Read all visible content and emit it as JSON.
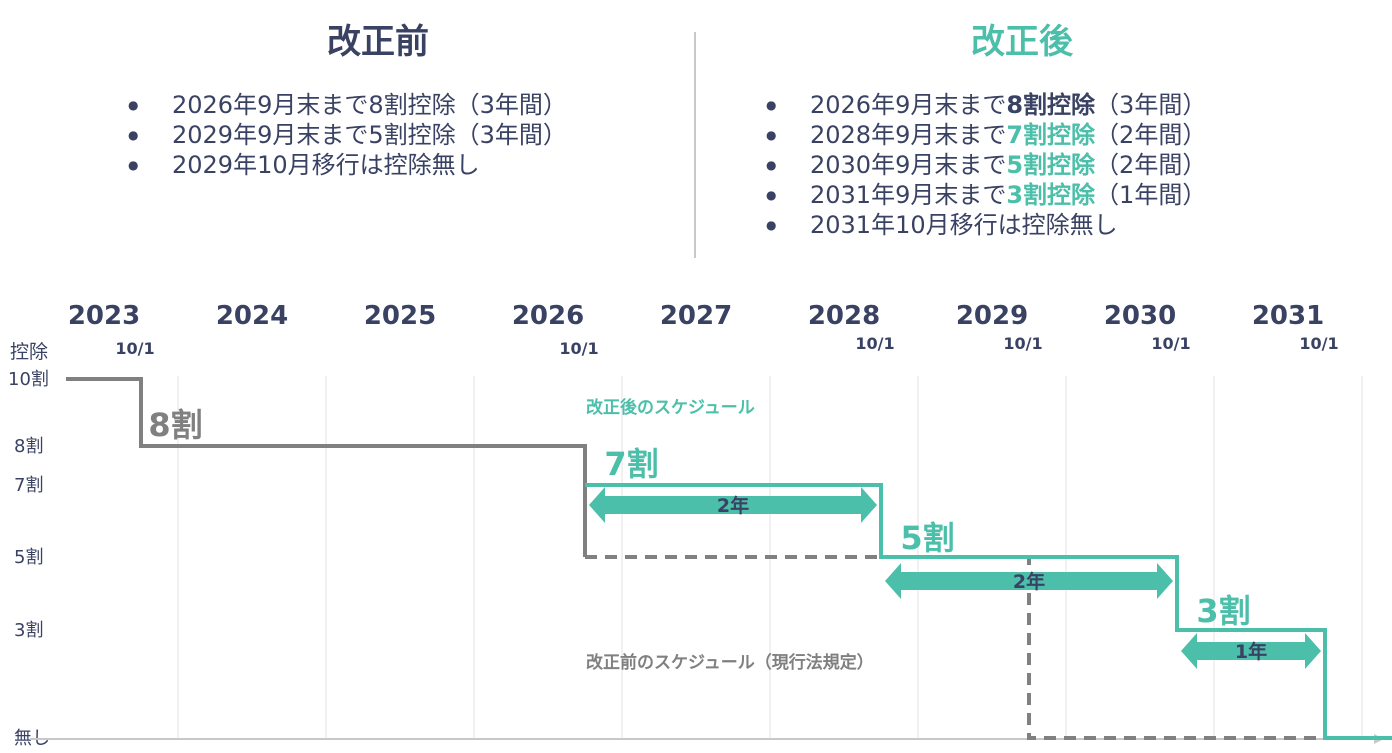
{
  "before": {
    "title": "改正前",
    "items": [
      "2026年9月末まで8割控除（3年間）",
      "2029年9月末まで5割控除（3年間）",
      "2029年10月移行は控除無し"
    ]
  },
  "after": {
    "title": "改正後",
    "items": [
      {
        "pre": "2026年9月末まで",
        "hl": "8割控除",
        "post": "（3年間）",
        "hl_color": "#3a4263"
      },
      {
        "pre": "2028年9月末まで",
        "hl": "7割控除",
        "post": "（2年間）",
        "hl_color": "#4bbfa9"
      },
      {
        "pre": "2030年9月末まで",
        "hl": "5割控除",
        "post": "（2年間）",
        "hl_color": "#4bbfa9"
      },
      {
        "pre": "2031年9月末まで",
        "hl": "3割控除",
        "post": "（1年間）",
        "hl_color": "#4bbfa9"
      },
      {
        "pre": "2031年10月移行は控除無し",
        "hl": "",
        "post": "",
        "hl_color": "#3a4263"
      }
    ]
  },
  "colors": {
    "dark": "#3a4263",
    "teal": "#4bbfa9",
    "gray": "#808080",
    "grid": "#e3e3e3"
  },
  "chart_data": {
    "type": "line",
    "years": [
      "2023",
      "2024",
      "2025",
      "2026",
      "2027",
      "2028",
      "2029",
      "2030",
      "2031"
    ],
    "y_axis_title": "控除",
    "y_ticks": [
      {
        "label": "10割",
        "value": 10
      },
      {
        "label": "8割",
        "value": 8
      },
      {
        "label": "7割",
        "value": 7
      },
      {
        "label": "5割",
        "value": 5
      },
      {
        "label": "3割",
        "value": 3
      },
      {
        "label": "無し",
        "value": 0
      }
    ],
    "date_marker_label": "10/1",
    "date_markers": [
      2023.75,
      2026.75,
      2028.75,
      2029.75,
      2030.75,
      2031.75
    ],
    "series": [
      {
        "name": "改正前のスケジュール（現行法規定）",
        "points": [
          [
            2023.0,
            10
          ],
          [
            2023.75,
            10
          ],
          [
            2023.75,
            8
          ],
          [
            2026.75,
            8
          ],
          [
            2026.75,
            5
          ],
          [
            2029.75,
            5
          ],
          [
            2029.75,
            0
          ],
          [
            2032.25,
            0
          ]
        ]
      },
      {
        "name": "改正後のスケジュール",
        "points": [
          [
            2026.75,
            7
          ],
          [
            2028.75,
            7
          ],
          [
            2028.75,
            5
          ],
          [
            2030.75,
            5
          ],
          [
            2030.75,
            3
          ],
          [
            2031.75,
            3
          ],
          [
            2031.75,
            0
          ],
          [
            2032.25,
            0
          ]
        ]
      }
    ],
    "step_labels": [
      {
        "text": "8割",
        "x": 2023.8,
        "y": 8,
        "color": "#808080"
      },
      {
        "text": "7割",
        "x": 2026.8,
        "y": 7,
        "color": "#4bbfa9"
      },
      {
        "text": "5割",
        "x": 2028.8,
        "y": 5,
        "color": "#4bbfa9"
      },
      {
        "text": "3割",
        "x": 2030.8,
        "y": 3,
        "color": "#4bbfa9"
      }
    ],
    "durations": [
      {
        "label": "2年",
        "from": 2026.75,
        "to": 2028.75,
        "y": 6.0
      },
      {
        "label": "2年",
        "from": 2028.75,
        "to": 2030.75,
        "y": 4.0
      },
      {
        "label": "1年",
        "from": 2030.75,
        "to": 2031.75,
        "y": 2.0
      }
    ]
  }
}
